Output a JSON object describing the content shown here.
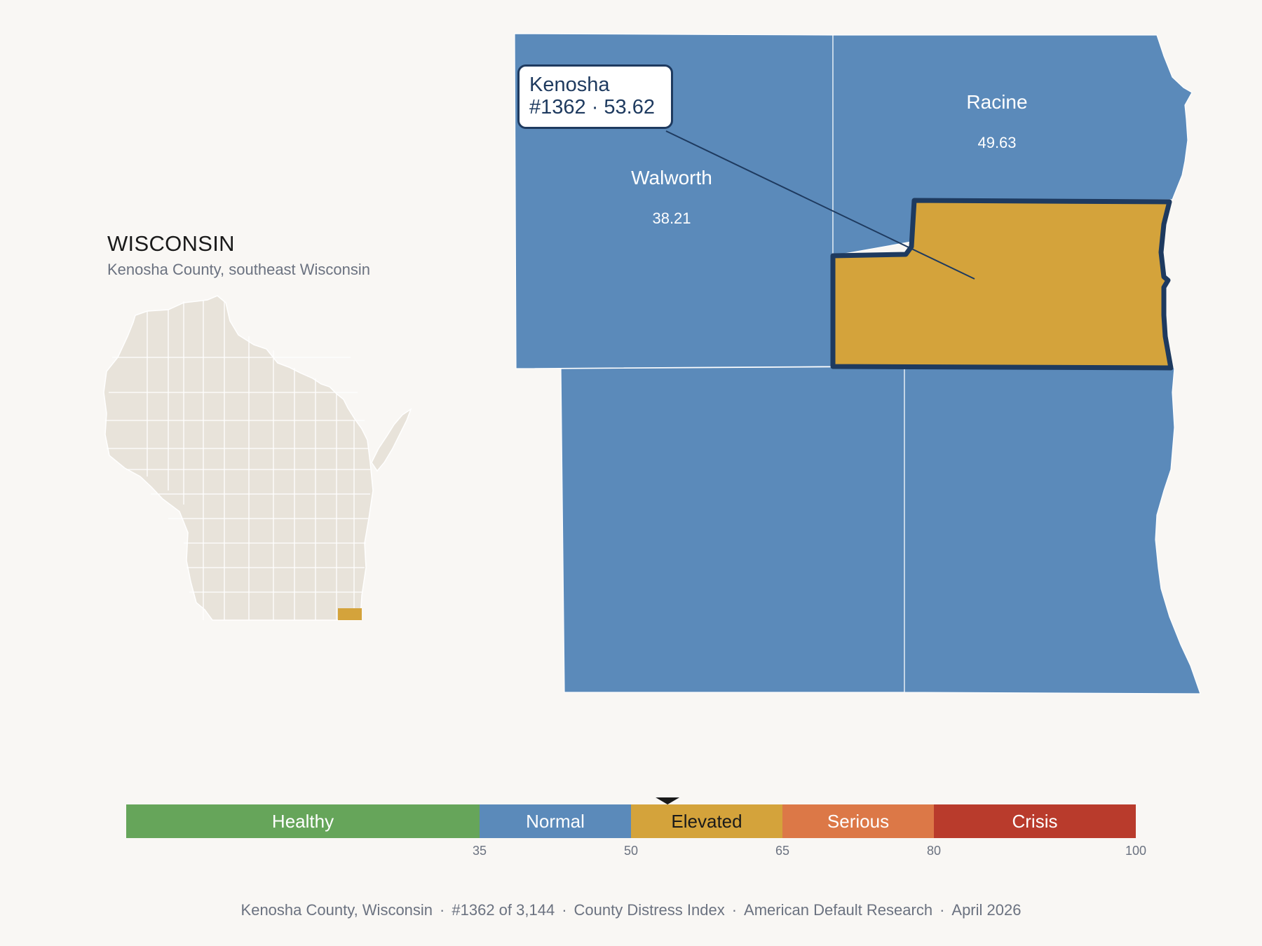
{
  "locator": {
    "state_title": "WISCONSIN",
    "subtitle": "Kenosha County, southeast Wisconsin"
  },
  "callout": {
    "name": "Kenosha",
    "detail": "#1362 · 53.62"
  },
  "counties": [
    {
      "name": "Walworth",
      "value": "38.21",
      "color": "#5b8aba"
    },
    {
      "name": "Racine",
      "value": "49.63",
      "color": "#5b8aba"
    },
    {
      "name": "Kenosha",
      "value": "53.62",
      "color": "#d4a33b",
      "highlighted": true
    },
    {
      "name": "",
      "value": "",
      "color": "#5b8aba"
    },
    {
      "name": "",
      "value": "",
      "color": "#5b8aba"
    }
  ],
  "legend": {
    "bands": [
      {
        "label": "Healthy",
        "from": 0,
        "to": 35,
        "color": "#66a55a",
        "text": "#ffffff"
      },
      {
        "label": "Normal",
        "from": 35,
        "to": 50,
        "color": "#5b8aba",
        "text": "#ffffff"
      },
      {
        "label": "Elevated",
        "from": 50,
        "to": 65,
        "color": "#d4a33b",
        "text": "#1a1a1a"
      },
      {
        "label": "Serious",
        "from": 65,
        "to": 80,
        "color": "#dc7847",
        "text": "#ffffff"
      },
      {
        "label": "Crisis",
        "from": 80,
        "to": 100,
        "color": "#b93b2c",
        "text": "#ffffff"
      }
    ],
    "ticks": [
      "35",
      "50",
      "65",
      "80",
      "100"
    ],
    "marker_value": 53.62
  },
  "footer": [
    "Kenosha County, Wisconsin",
    "#1362 of 3,144",
    "County Distress Index",
    "American Default Research",
    "April 2026"
  ],
  "colors": {
    "background": "#f9f7f4",
    "state_fill": "#e8e3da",
    "highlight": "#d4a33b",
    "outline": "#1e3a5f"
  }
}
